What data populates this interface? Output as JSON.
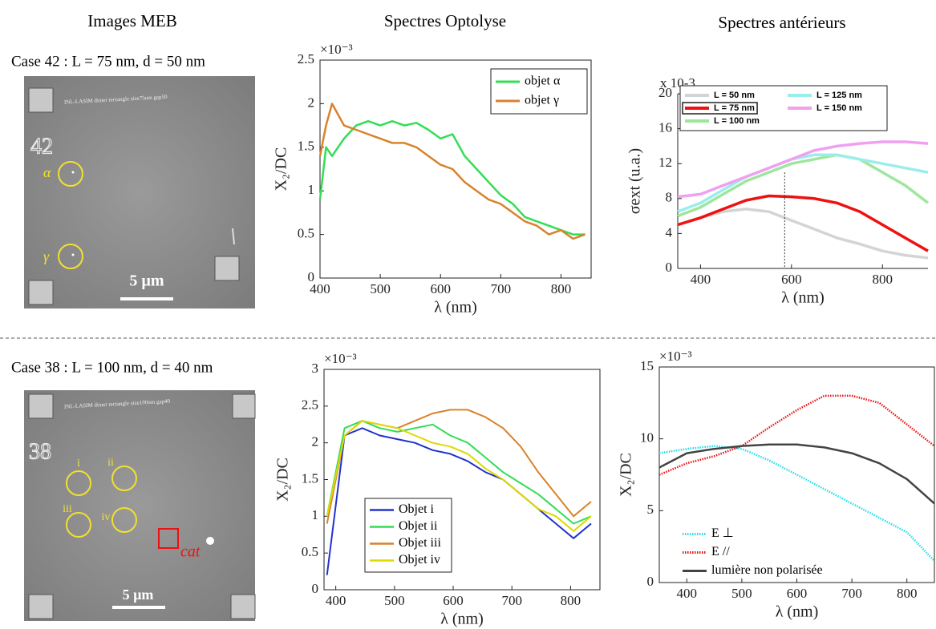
{
  "headers": [
    "Images MEB",
    "Spectres Optolyse",
    "Spectres antérieurs"
  ],
  "cases": [
    "Case 42 : L = 75 nm, d = 50 nm",
    "Case 38 : L = 100 nm, d = 40 nm"
  ],
  "sem_images": [
    {
      "number": "42",
      "banner": "INL-LASIM dimer rectangle size75nm gap50",
      "markers": [
        "α",
        "γ"
      ],
      "scale": "5 µm"
    },
    {
      "number": "38",
      "banner": "INL-LASIM dimer rectangle size100nm gap40",
      "markers": [
        "i",
        "ii",
        "iii",
        "iv"
      ],
      "extra": "cat",
      "scale": "5 µm"
    }
  ],
  "chart_data": [
    {
      "type": "line",
      "multiplier": "×10⁻³",
      "x_label": "λ (nm)",
      "y_label": "X₂/DC",
      "x": [
        400,
        410,
        420,
        440,
        460,
        480,
        500,
        520,
        540,
        560,
        580,
        600,
        620,
        640,
        660,
        680,
        700,
        720,
        740,
        760,
        780,
        800,
        820,
        840
      ],
      "series": [
        {
          "name": "objet α",
          "color": "#33dd55",
          "values": [
            0.9,
            1.5,
            1.4,
            1.6,
            1.75,
            1.8,
            1.75,
            1.8,
            1.75,
            1.78,
            1.7,
            1.6,
            1.65,
            1.4,
            1.25,
            1.1,
            0.95,
            0.85,
            0.7,
            0.65,
            0.6,
            0.55,
            0.5,
            0.5
          ]
        },
        {
          "name": "objet γ",
          "color": "#d9822b",
          "values": [
            1.4,
            1.75,
            2.0,
            1.75,
            1.7,
            1.65,
            1.6,
            1.55,
            1.55,
            1.5,
            1.4,
            1.3,
            1.25,
            1.1,
            1.0,
            0.9,
            0.85,
            0.75,
            0.65,
            0.6,
            0.5,
            0.55,
            0.45,
            0.5
          ]
        }
      ],
      "xlim": [
        400,
        850
      ],
      "xticks": [
        400,
        500,
        600,
        700,
        800
      ],
      "ylim": [
        0,
        2.5
      ],
      "yticks": [
        0,
        0.5,
        1,
        1.5,
        2,
        2.5
      ],
      "legend": "upper right",
      "box": true
    },
    {
      "type": "line",
      "multiplier": "x 10-3",
      "x_label": "λ  (nm)",
      "y_label": "σext (u.a.)",
      "x": [
        350,
        400,
        450,
        500,
        550,
        600,
        650,
        700,
        750,
        800,
        850,
        900
      ],
      "series": [
        {
          "name": "L = 50 nm",
          "color": "#d4d4d4",
          "values": [
            5,
            5.8,
            6.5,
            6.8,
            6.5,
            5.5,
            4.5,
            3.5,
            2.8,
            2,
            1.5,
            1.2
          ]
        },
        {
          "name": "L = 75 nm",
          "color": "#ee1111",
          "values": [
            5,
            5.8,
            6.8,
            7.8,
            8.3,
            8.2,
            8,
            7.5,
            6.5,
            5,
            3.5,
            2
          ],
          "highlight": true
        },
        {
          "name": "L = 100 nm",
          "color": "#9ee69e",
          "values": [
            6,
            7,
            8.5,
            10,
            11,
            12,
            12.5,
            13,
            12.5,
            11,
            9.5,
            7.5
          ]
        },
        {
          "name": "L = 125 nm",
          "color": "#9aeeea",
          "values": [
            6.5,
            7.5,
            9,
            10.5,
            11.5,
            12.5,
            13,
            13,
            12.5,
            12,
            11.5,
            11
          ]
        },
        {
          "name": "L = 150 nm",
          "color": "#f0a0f0",
          "values": [
            8.2,
            8.5,
            9.5,
            10.5,
            11.5,
            12.5,
            13.5,
            14,
            14.3,
            14.5,
            14.5,
            14.3
          ]
        }
      ],
      "xlim": [
        350,
        900
      ],
      "xticks": [
        400,
        600,
        800
      ],
      "ylim": [
        0,
        20
      ],
      "yticks": [
        0,
        4,
        8,
        12,
        16,
        20
      ],
      "legend": "upper left",
      "box": false
    },
    {
      "type": "line",
      "multiplier": "×10⁻³",
      "x_label": "λ (nm)",
      "y_label": "X₂/DC",
      "x": [
        385,
        415,
        445,
        475,
        505,
        535,
        565,
        595,
        625,
        655,
        685,
        715,
        745,
        775,
        805,
        835
      ],
      "series": [
        {
          "name": "Objet i",
          "color": "#2233cc",
          "values": [
            0.2,
            2.1,
            2.2,
            2.1,
            2.05,
            2.0,
            1.9,
            1.85,
            1.75,
            1.6,
            1.5,
            1.3,
            1.1,
            0.9,
            0.7,
            0.9
          ]
        },
        {
          "name": "Objet ii",
          "color": "#33dd55",
          "values": [
            1.0,
            2.2,
            2.3,
            2.2,
            2.15,
            2.2,
            2.25,
            2.1,
            2.0,
            1.8,
            1.6,
            1.45,
            1.3,
            1.1,
            0.9,
            1.0
          ]
        },
        {
          "name": "Objet iii",
          "color": "#d9822b",
          "values": [
            0.9,
            2.1,
            2.3,
            2.25,
            2.2,
            2.3,
            2.4,
            2.45,
            2.45,
            2.35,
            2.2,
            1.95,
            1.6,
            1.3,
            1.0,
            1.2
          ]
        },
        {
          "name": "Objet iv",
          "color": "#e0d800",
          "values": [
            1.0,
            2.1,
            2.3,
            2.25,
            2.2,
            2.1,
            2.0,
            1.95,
            1.85,
            1.65,
            1.5,
            1.3,
            1.1,
            1.0,
            0.8,
            1.0
          ]
        }
      ],
      "xlim": [
        380,
        850
      ],
      "xticks": [
        400,
        500,
        600,
        700,
        800
      ],
      "ylim": [
        0,
        3
      ],
      "yticks": [
        0,
        0.5,
        1,
        1.5,
        2,
        2.5,
        3
      ],
      "legend": "lower left",
      "box": true
    },
    {
      "type": "line",
      "multiplier": "×10⁻³",
      "x_label": "λ (nm)",
      "y_label": "X₂/DC",
      "x": [
        350,
        400,
        450,
        500,
        550,
        600,
        650,
        700,
        750,
        800,
        850
      ],
      "series": [
        {
          "name": "E ⊥",
          "color": "#22dde8",
          "style": "dotted",
          "values": [
            9,
            9.3,
            9.5,
            9.3,
            8.5,
            7.5,
            6.5,
            5.5,
            4.5,
            3.5,
            1.5
          ]
        },
        {
          "name": "E //",
          "color": "#ee1111",
          "style": "dotted",
          "values": [
            7.5,
            8.3,
            8.8,
            9.5,
            10.8,
            12,
            13,
            13,
            12.5,
            11,
            9.5
          ]
        },
        {
          "name": "lumière non polarisée",
          "color": "#444444",
          "style": "solid",
          "values": [
            8,
            9,
            9.3,
            9.5,
            9.6,
            9.6,
            9.4,
            9,
            8.3,
            7.2,
            5.5
          ]
        }
      ],
      "xlim": [
        350,
        850
      ],
      "xticks": [
        400,
        500,
        600,
        700,
        800
      ],
      "ylim": [
        0,
        15
      ],
      "yticks": [
        0,
        5,
        10,
        15
      ],
      "legend": "lower left",
      "box": true
    }
  ]
}
